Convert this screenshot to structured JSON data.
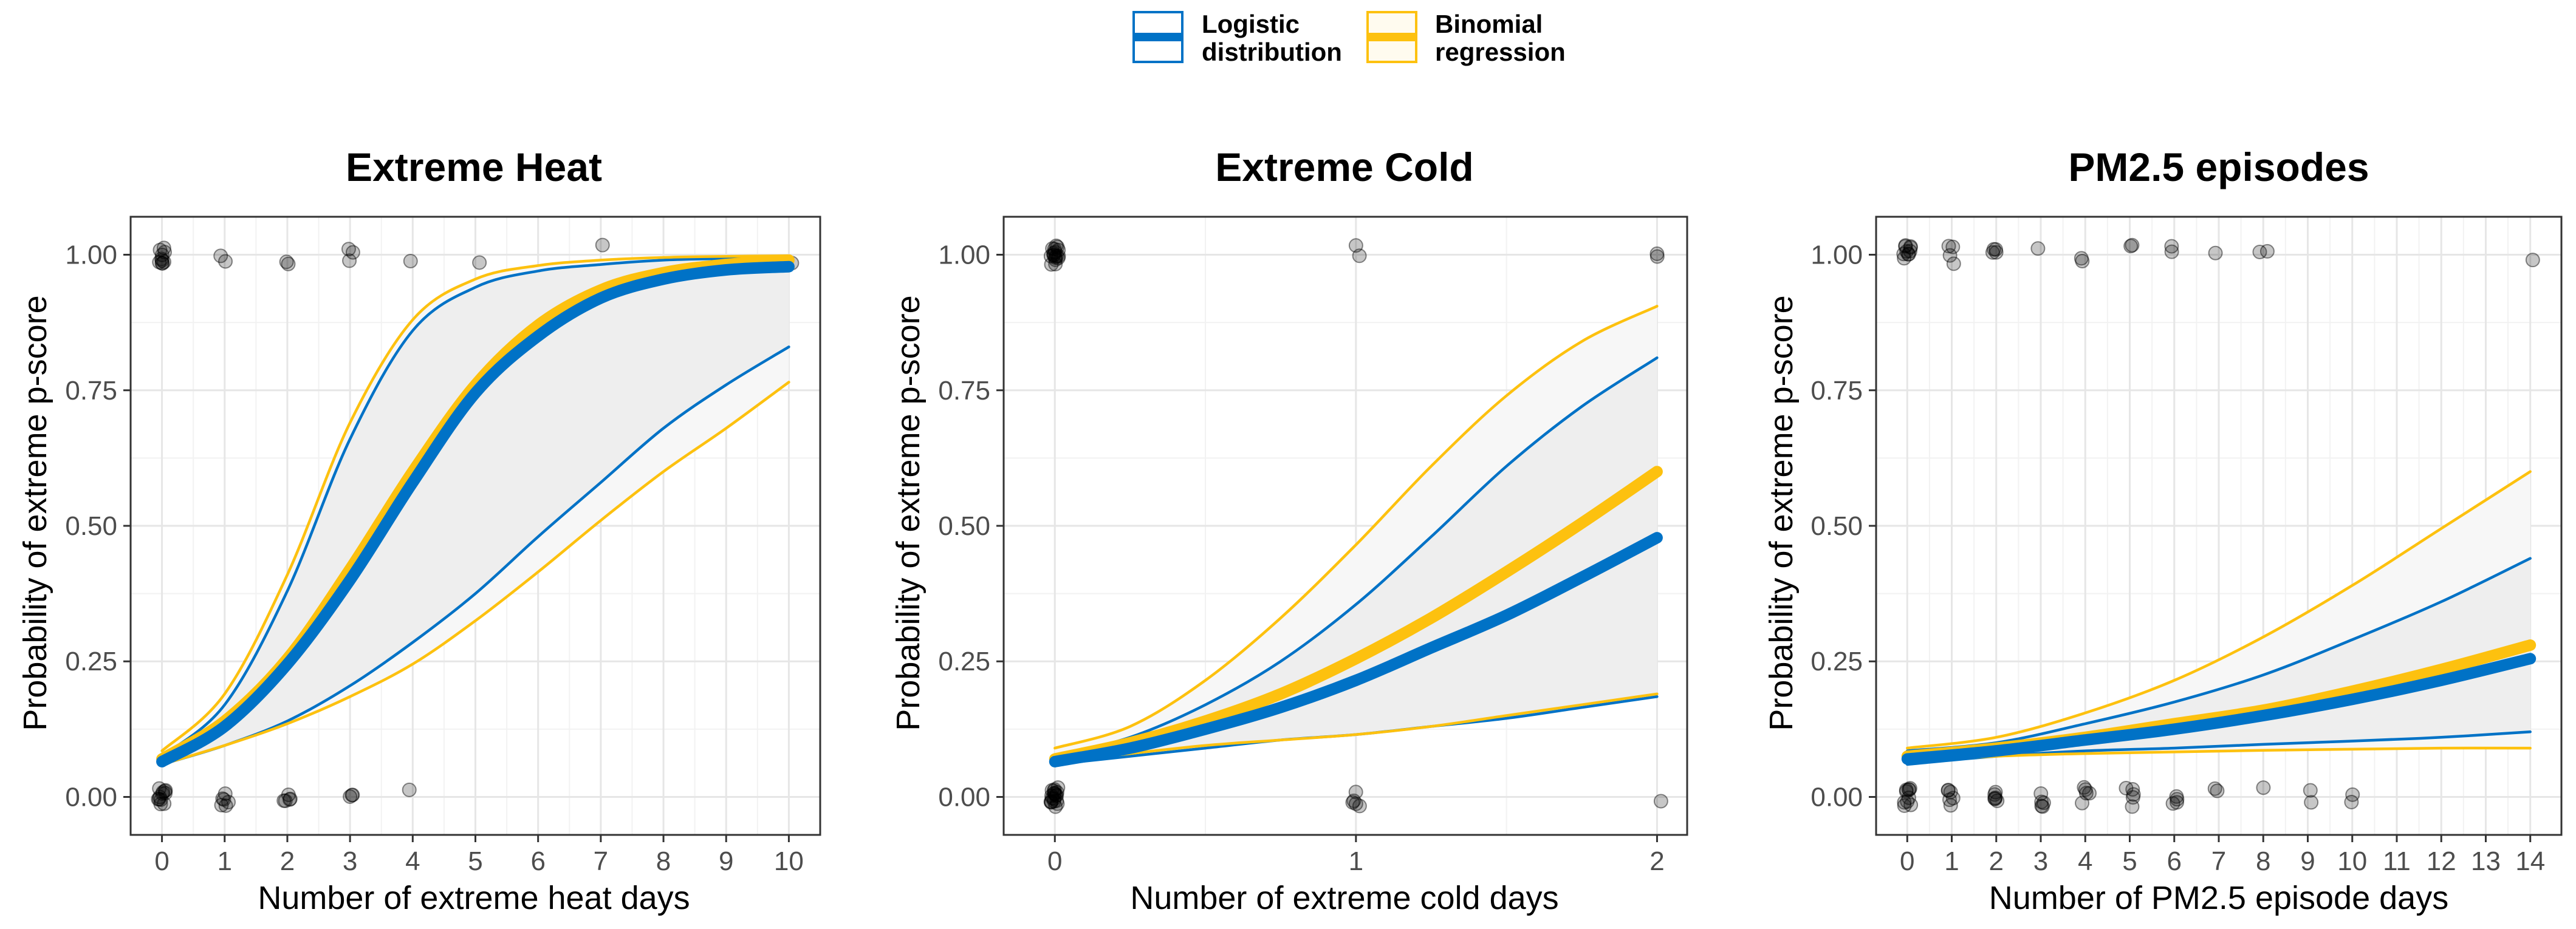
{
  "legend": {
    "items": [
      {
        "line1": "Logistic",
        "line2": "distribution",
        "color": "#0072C6",
        "fill": "#FFFFFF"
      },
      {
        "line1": "Binomial",
        "line2": "regression",
        "color": "#FDC10F",
        "fill": "#FFFBEF"
      }
    ]
  },
  "colors": {
    "logistic": "#0072C6",
    "binomial": "#FDC10F",
    "band": "#EBEBEB",
    "points": "#000000",
    "grid": "#E6E6E6"
  },
  "chart_data": [
    {
      "type": "line",
      "title": "Extreme Heat",
      "xlabel": "Number of extreme heat days",
      "ylabel": "Probability of extreme p-score",
      "xlim": [
        -0.5,
        10.5
      ],
      "ylim": [
        -0.07,
        1.07
      ],
      "xticks": [
        0,
        1,
        2,
        3,
        4,
        5,
        6,
        7,
        8,
        9,
        10
      ],
      "yticks": [
        0,
        0.25,
        0.5,
        0.75,
        1.0
      ],
      "ytick_labels": [
        "0.00",
        "0.25",
        "0.50",
        "0.75",
        "1.00"
      ],
      "x": [
        0,
        1,
        2,
        3,
        4,
        5,
        6,
        7,
        8,
        9,
        10
      ],
      "series": [
        {
          "name": "Logistic distribution",
          "role": "fit",
          "values": [
            0.065,
            0.13,
            0.245,
            0.4,
            0.58,
            0.745,
            0.85,
            0.92,
            0.955,
            0.972,
            0.978
          ]
        },
        {
          "name": "Logistic distribution",
          "role": "upper",
          "values": [
            0.075,
            0.17,
            0.38,
            0.66,
            0.86,
            0.94,
            0.97,
            0.982,
            0.99,
            0.993,
            0.995
          ]
        },
        {
          "name": "Logistic distribution",
          "role": "lower",
          "values": [
            0.06,
            0.095,
            0.14,
            0.205,
            0.285,
            0.375,
            0.48,
            0.58,
            0.68,
            0.76,
            0.83
          ]
        },
        {
          "name": "Binomial regression",
          "role": "fit",
          "values": [
            0.07,
            0.14,
            0.255,
            0.42,
            0.6,
            0.76,
            0.87,
            0.935,
            0.967,
            0.982,
            0.99
          ]
        },
        {
          "name": "Binomial regression",
          "role": "upper",
          "values": [
            0.085,
            0.19,
            0.41,
            0.69,
            0.88,
            0.955,
            0.98,
            0.99,
            0.995,
            0.997,
            0.998
          ]
        },
        {
          "name": "Binomial regression",
          "role": "lower",
          "values": [
            0.06,
            0.095,
            0.135,
            0.185,
            0.245,
            0.325,
            0.415,
            0.51,
            0.6,
            0.68,
            0.765
          ]
        }
      ],
      "points_top": [
        [
          0,
          1
        ],
        [
          0,
          1
        ],
        [
          0,
          1
        ],
        [
          0,
          1
        ],
        [
          0,
          1
        ],
        [
          0,
          1
        ],
        [
          0,
          1
        ],
        [
          0,
          1
        ],
        [
          0,
          1
        ],
        [
          0,
          1
        ],
        [
          1,
          1
        ],
        [
          1,
          1
        ],
        [
          2,
          1
        ],
        [
          2,
          1
        ],
        [
          3,
          1
        ],
        [
          3,
          1
        ],
        [
          3,
          1
        ],
        [
          4,
          1
        ],
        [
          5,
          1
        ],
        [
          7,
          1
        ],
        [
          10,
          1
        ]
      ],
      "points_bottom": [
        [
          0,
          0
        ],
        [
          0,
          0
        ],
        [
          0,
          0
        ],
        [
          0,
          0
        ],
        [
          0,
          0
        ],
        [
          0,
          0
        ],
        [
          0,
          0
        ],
        [
          0,
          0
        ],
        [
          0,
          0
        ],
        [
          0,
          0
        ],
        [
          0,
          0
        ],
        [
          0,
          0
        ],
        [
          1,
          0
        ],
        [
          1,
          0
        ],
        [
          1,
          0
        ],
        [
          1,
          0
        ],
        [
          1,
          0
        ],
        [
          1,
          0
        ],
        [
          2,
          0
        ],
        [
          2,
          0
        ],
        [
          2,
          0
        ],
        [
          2,
          0
        ],
        [
          2,
          0
        ],
        [
          3,
          0
        ],
        [
          3,
          0
        ],
        [
          3,
          0
        ],
        [
          4,
          0
        ]
      ]
    },
    {
      "type": "line",
      "title": "Extreme Cold",
      "xlabel": "Number of extreme cold days",
      "ylabel": "Probability of extreme p-score",
      "xlim": [
        -0.17,
        2.1
      ],
      "ylim": [
        -0.07,
        1.07
      ],
      "xticks": [
        0,
        1,
        2
      ],
      "yticks": [
        0,
        0.25,
        0.5,
        0.75,
        1.0
      ],
      "ytick_labels": [
        "0.00",
        "0.25",
        "0.50",
        "0.75",
        "1.00"
      ],
      "x": [
        0,
        0.25,
        0.5,
        0.75,
        1,
        1.25,
        1.5,
        1.75,
        2
      ],
      "series": [
        {
          "name": "Logistic distribution",
          "role": "fit",
          "values": [
            0.065,
            0.09,
            0.125,
            0.165,
            0.215,
            0.275,
            0.335,
            0.405,
            0.478
          ]
        },
        {
          "name": "Logistic distribution",
          "role": "upper",
          "values": [
            0.075,
            0.11,
            0.17,
            0.25,
            0.355,
            0.48,
            0.61,
            0.72,
            0.81
          ]
        },
        {
          "name": "Logistic distribution",
          "role": "lower",
          "values": [
            0.06,
            0.075,
            0.09,
            0.105,
            0.115,
            0.13,
            0.145,
            0.165,
            0.185
          ]
        },
        {
          "name": "Binomial regression",
          "role": "fit",
          "values": [
            0.07,
            0.1,
            0.14,
            0.19,
            0.255,
            0.33,
            0.415,
            0.505,
            0.6
          ]
        },
        {
          "name": "Binomial regression",
          "role": "upper",
          "values": [
            0.09,
            0.13,
            0.215,
            0.33,
            0.465,
            0.61,
            0.74,
            0.84,
            0.905
          ]
        },
        {
          "name": "Binomial regression",
          "role": "lower",
          "values": [
            0.065,
            0.08,
            0.095,
            0.105,
            0.115,
            0.13,
            0.15,
            0.17,
            0.19
          ]
        }
      ],
      "points_top": [
        [
          0,
          1
        ],
        [
          0,
          1
        ],
        [
          0,
          1
        ],
        [
          0,
          1
        ],
        [
          0,
          1
        ],
        [
          0,
          1
        ],
        [
          0,
          1
        ],
        [
          0,
          1
        ],
        [
          0,
          1
        ],
        [
          0,
          1
        ],
        [
          0,
          1
        ],
        [
          0,
          1
        ],
        [
          0,
          1
        ],
        [
          0,
          1
        ],
        [
          0,
          1
        ],
        [
          0,
          1
        ],
        [
          0,
          1
        ],
        [
          0,
          1
        ],
        [
          1,
          1
        ],
        [
          1,
          1
        ],
        [
          2,
          1
        ],
        [
          2,
          1
        ]
      ],
      "points_bottom": [
        [
          0,
          0
        ],
        [
          0,
          0
        ],
        [
          0,
          0
        ],
        [
          0,
          0
        ],
        [
          0,
          0
        ],
        [
          0,
          0
        ],
        [
          0,
          0
        ],
        [
          0,
          0
        ],
        [
          0,
          0
        ],
        [
          0,
          0
        ],
        [
          0,
          0
        ],
        [
          0,
          0
        ],
        [
          0,
          0
        ],
        [
          0,
          0
        ],
        [
          0,
          0
        ],
        [
          0,
          0
        ],
        [
          0,
          0
        ],
        [
          0,
          0
        ],
        [
          0,
          0
        ],
        [
          0,
          0
        ],
        [
          1,
          0
        ],
        [
          1,
          0
        ],
        [
          1,
          0
        ],
        [
          1,
          0
        ],
        [
          1,
          0
        ],
        [
          2,
          0
        ]
      ]
    },
    {
      "type": "line",
      "title": "PM2.5 episodes",
      "xlabel": "Number of PM2.5 episode days",
      "ylabel": "Probability of extreme p-score",
      "xlim": [
        -0.7,
        14.7
      ],
      "ylim": [
        -0.07,
        1.07
      ],
      "xticks": [
        0,
        1,
        2,
        3,
        4,
        5,
        6,
        7,
        8,
        9,
        10,
        11,
        12,
        13,
        14
      ],
      "yticks": [
        0,
        0.25,
        0.5,
        0.75,
        1.0
      ],
      "ytick_labels": [
        "0.00",
        "0.25",
        "0.50",
        "0.75",
        "1.00"
      ],
      "x": [
        0,
        2,
        4,
        6,
        8,
        10,
        12,
        14
      ],
      "series": [
        {
          "name": "Logistic distribution",
          "role": "fit",
          "values": [
            0.07,
            0.085,
            0.105,
            0.125,
            0.15,
            0.18,
            0.215,
            0.255
          ]
        },
        {
          "name": "Logistic distribution",
          "role": "upper",
          "values": [
            0.085,
            0.1,
            0.135,
            0.175,
            0.225,
            0.29,
            0.36,
            0.44
          ]
        },
        {
          "name": "Logistic distribution",
          "role": "lower",
          "values": [
            0.06,
            0.075,
            0.085,
            0.09,
            0.097,
            0.103,
            0.11,
            0.12
          ]
        },
        {
          "name": "Binomial regression",
          "role": "fit",
          "values": [
            0.075,
            0.09,
            0.11,
            0.135,
            0.16,
            0.195,
            0.235,
            0.28
          ]
        },
        {
          "name": "Binomial regression",
          "role": "upper",
          "values": [
            0.09,
            0.11,
            0.155,
            0.215,
            0.295,
            0.39,
            0.495,
            0.6
          ]
        },
        {
          "name": "Binomial regression",
          "role": "lower",
          "values": [
            0.065,
            0.075,
            0.08,
            0.083,
            0.086,
            0.088,
            0.09,
            0.09
          ]
        }
      ],
      "points_top": [
        [
          0,
          1
        ],
        [
          0,
          1
        ],
        [
          0,
          1
        ],
        [
          0,
          1
        ],
        [
          0,
          1
        ],
        [
          0,
          1
        ],
        [
          0,
          1
        ],
        [
          0,
          1
        ],
        [
          0,
          1
        ],
        [
          0,
          1
        ],
        [
          1,
          1
        ],
        [
          1,
          1
        ],
        [
          1,
          1
        ],
        [
          1,
          1
        ],
        [
          2,
          1
        ],
        [
          2,
          1
        ],
        [
          2,
          1
        ],
        [
          2,
          1
        ],
        [
          3,
          1
        ],
        [
          4,
          1
        ],
        [
          4,
          1
        ],
        [
          5,
          1
        ],
        [
          5,
          1
        ],
        [
          6,
          1
        ],
        [
          6,
          1
        ],
        [
          7,
          1
        ],
        [
          8,
          1
        ],
        [
          8,
          1
        ],
        [
          14,
          1
        ]
      ],
      "points_bottom": [
        [
          0,
          0
        ],
        [
          0,
          0
        ],
        [
          0,
          0
        ],
        [
          0,
          0
        ],
        [
          0,
          0
        ],
        [
          0,
          0
        ],
        [
          0,
          0
        ],
        [
          0,
          0
        ],
        [
          0,
          0
        ],
        [
          0,
          0
        ],
        [
          1,
          0
        ],
        [
          1,
          0
        ],
        [
          1,
          0
        ],
        [
          1,
          0
        ],
        [
          1,
          0
        ],
        [
          1,
          0
        ],
        [
          2,
          0
        ],
        [
          2,
          0
        ],
        [
          2,
          0
        ],
        [
          2,
          0
        ],
        [
          2,
          0
        ],
        [
          2,
          0
        ],
        [
          3,
          0
        ],
        [
          3,
          0
        ],
        [
          3,
          0
        ],
        [
          3,
          0
        ],
        [
          3,
          0
        ],
        [
          4,
          0
        ],
        [
          4,
          0
        ],
        [
          4,
          0
        ],
        [
          4,
          0
        ],
        [
          4,
          0
        ],
        [
          5,
          0
        ],
        [
          5,
          0
        ],
        [
          5,
          0
        ],
        [
          5,
          0
        ],
        [
          5,
          0
        ],
        [
          6,
          0
        ],
        [
          6,
          0
        ],
        [
          6,
          0
        ],
        [
          6,
          0
        ],
        [
          7,
          0
        ],
        [
          7,
          0
        ],
        [
          8,
          0
        ],
        [
          9,
          0
        ],
        [
          9,
          0
        ],
        [
          10,
          0
        ],
        [
          10,
          0
        ]
      ]
    }
  ]
}
